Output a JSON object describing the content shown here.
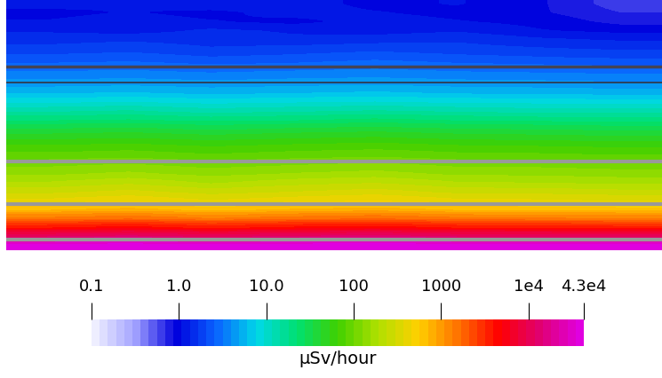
{
  "chart_data": {
    "type": "heatmap",
    "colorbar_label": "μSv/hour",
    "log": true,
    "color_range": [
      0.1,
      43000
    ],
    "color_ticks": [
      0.1,
      {
        "value": 1,
        "label": "1.0"
      },
      {
        "value": 10,
        "label": "10.0"
      },
      100,
      1000,
      {
        "value": 10000,
        "label": "1e4"
      },
      {
        "value": 43000,
        "label": "4.3e4"
      }
    ],
    "tick_labels": false,
    "cells": [
      [
        1.2,
        1.1,
        1.3,
        1.2,
        1.0,
        1.1,
        0.9,
        0.6
      ],
      [
        1.0,
        1.1,
        1.0,
        1.2,
        1.1,
        1.0,
        0.9,
        0.7
      ],
      [
        1.1,
        1.2,
        1.1,
        1.0,
        1.2,
        1.1,
        1.0,
        0.8
      ],
      [
        1.3,
        1.2,
        1.4,
        1.3,
        1.2,
        1.3,
        1.1,
        1.0
      ],
      [
        1.5,
        1.6,
        1.5,
        1.4,
        1.5,
        1.6,
        1.4,
        1.3
      ],
      [
        1.8,
        1.9,
        1.7,
        1.8,
        1.9,
        1.8,
        1.7,
        1.6
      ],
      [
        2.2,
        2.3,
        2.1,
        2.2,
        2.4,
        2.2,
        2.1,
        2.0
      ],
      [
        2.8,
        2.9,
        2.7,
        2.8,
        3.0,
        2.8,
        2.7,
        2.6
      ],
      [
        3.5,
        3.6,
        3.4,
        3.6,
        3.7,
        3.5,
        3.4,
        3.3
      ],
      [
        4.5,
        4.7,
        4.4,
        4.6,
        4.8,
        4.5,
        4.4,
        4.2
      ],
      [
        6.0,
        6.3,
        5.8,
        6.1,
        6.4,
        6.0,
        5.8,
        5.6
      ],
      [
        9.0,
        9.5,
        8.7,
        9.2,
        9.6,
        9.0,
        8.8,
        8.5
      ],
      [
        14,
        15,
        13,
        14,
        15,
        14,
        13,
        13
      ],
      [
        22,
        23,
        21,
        22,
        24,
        22,
        21,
        20
      ],
      [
        35,
        37,
        33,
        36,
        38,
        35,
        34,
        32
      ],
      [
        50,
        53,
        48,
        52,
        55,
        50,
        48,
        46
      ],
      [
        70,
        74,
        67,
        72,
        76,
        70,
        68,
        65
      ],
      [
        90,
        95,
        86,
        93,
        98,
        90,
        88,
        84
      ],
      [
        120,
        130,
        115,
        125,
        135,
        120,
        118,
        112
      ],
      [
        150,
        165,
        145,
        160,
        170,
        150,
        148,
        140
      ],
      [
        200,
        230,
        190,
        220,
        240,
        200,
        195,
        185
      ],
      [
        280,
        320,
        270,
        300,
        330,
        280,
        275,
        260
      ],
      [
        400,
        450,
        380,
        430,
        470,
        400,
        390,
        370
      ],
      [
        700,
        780,
        660,
        740,
        800,
        700,
        680,
        650
      ],
      [
        1500,
        1700,
        1400,
        1600,
        1750,
        1500,
        1450,
        1400
      ],
      [
        4000,
        4500,
        3800,
        4300,
        4600,
        4000,
        3900,
        3700
      ],
      [
        12000,
        13000,
        11500,
        12500,
        13500,
        12000,
        11800,
        11500
      ],
      [
        40000,
        42000,
        39000,
        41000,
        43000,
        40000,
        39500,
        39000
      ]
    ]
  }
}
